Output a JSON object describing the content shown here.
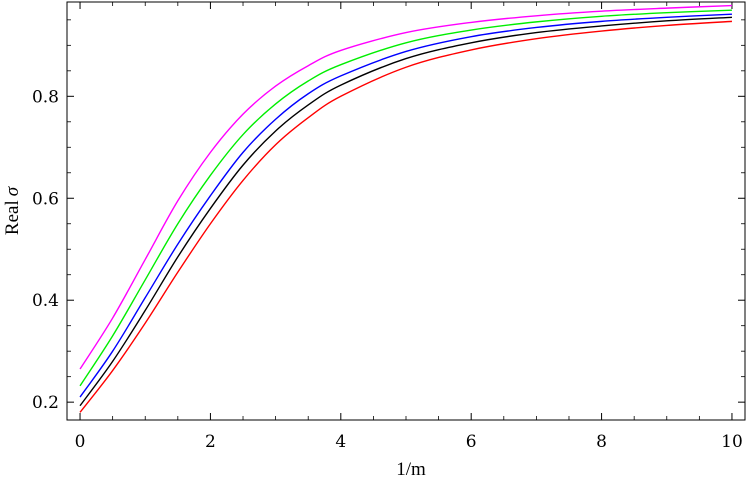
{
  "chart_data": {
    "type": "line",
    "title": "",
    "xlabel": "1/m",
    "ylabel_text": "Real",
    "ylabel_symbol": "σ",
    "xlim": [
      -0.2,
      10.2
    ],
    "ylim": [
      0.165,
      0.985
    ],
    "x_ticks": [
      0,
      2,
      4,
      6,
      8,
      10
    ],
    "y_ticks": [
      0.2,
      0.4,
      0.6,
      0.8
    ],
    "grid": false,
    "legend": "none",
    "series": [
      {
        "color": "#ff00ff",
        "x": [
          0,
          0.5,
          1,
          1.5,
          2,
          2.5,
          3,
          3.5,
          4,
          5,
          6,
          7,
          8,
          9,
          10
        ],
        "y": [
          0.265,
          0.365,
          0.48,
          0.595,
          0.69,
          0.765,
          0.82,
          0.86,
          0.89,
          0.925,
          0.945,
          0.958,
          0.967,
          0.973,
          0.978
        ]
      },
      {
        "color": "#00ee00",
        "x": [
          0,
          0.5,
          1,
          1.5,
          2,
          2.5,
          3,
          3.5,
          4,
          5,
          6,
          7,
          8,
          9,
          10
        ],
        "y": [
          0.232,
          0.33,
          0.44,
          0.55,
          0.645,
          0.725,
          0.785,
          0.83,
          0.862,
          0.905,
          0.93,
          0.946,
          0.957,
          0.964,
          0.969
        ]
      },
      {
        "color": "#0000ff",
        "x": [
          0,
          0.5,
          1,
          1.5,
          2,
          2.5,
          3,
          3.5,
          4,
          5,
          6,
          7,
          8,
          9,
          10
        ],
        "y": [
          0.21,
          0.3,
          0.405,
          0.51,
          0.605,
          0.69,
          0.755,
          0.805,
          0.84,
          0.888,
          0.917,
          0.935,
          0.947,
          0.955,
          0.961
        ]
      },
      {
        "color": "#000000",
        "x": [
          0,
          0.5,
          1,
          1.5,
          2,
          2.5,
          3,
          3.5,
          4,
          5,
          6,
          7,
          8,
          9,
          10
        ],
        "y": [
          0.193,
          0.28,
          0.38,
          0.485,
          0.58,
          0.665,
          0.732,
          0.783,
          0.822,
          0.874,
          0.905,
          0.925,
          0.938,
          0.948,
          0.955
        ]
      },
      {
        "color": "#ff0000",
        "x": [
          0,
          0.5,
          1,
          1.5,
          2,
          2.5,
          3,
          3.5,
          4,
          5,
          6,
          7,
          8,
          9,
          10
        ],
        "y": [
          0.18,
          0.262,
          0.355,
          0.455,
          0.55,
          0.635,
          0.705,
          0.758,
          0.8,
          0.857,
          0.891,
          0.913,
          0.928,
          0.939,
          0.947
        ]
      }
    ]
  }
}
